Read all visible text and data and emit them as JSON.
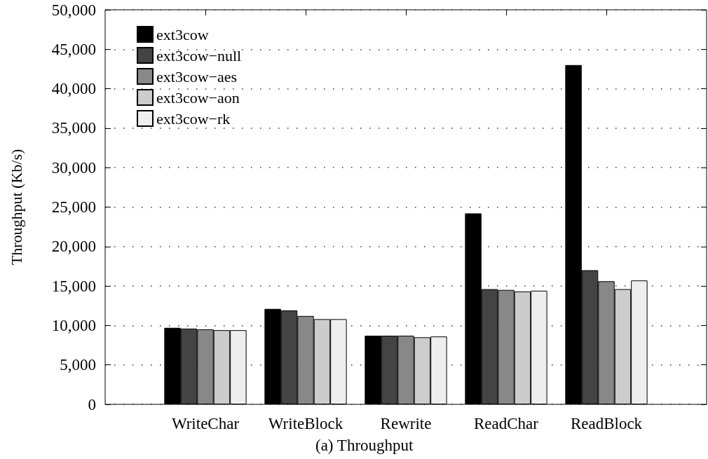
{
  "chart_data": {
    "type": "bar",
    "title": "(a) Throughput",
    "ylabel": "Throughput (Kb/s)",
    "categories": [
      "WriteChar",
      "WriteBlock",
      "Rewrite",
      "ReadChar",
      "ReadBlock"
    ],
    "series": [
      {
        "name": "ext3cow",
        "color": "#000000",
        "values": [
          9700,
          12100,
          8700,
          24200,
          43000
        ]
      },
      {
        "name": "ext3cow−null",
        "color": "#444444",
        "values": [
          9600,
          11900,
          8700,
          14600,
          17000
        ]
      },
      {
        "name": "ext3cow−aes",
        "color": "#888888",
        "values": [
          9500,
          11200,
          8700,
          14500,
          15600
        ]
      },
      {
        "name": "ext3cow−aon",
        "color": "#cccccc",
        "values": [
          9400,
          10800,
          8500,
          14300,
          14600
        ]
      },
      {
        "name": "ext3cow−rk",
        "color": "#eeeeee",
        "values": [
          9400,
          10800,
          8600,
          14400,
          15700
        ]
      }
    ],
    "ylim": [
      0,
      50000
    ],
    "yticks": [
      0,
      {
        "value": 5000,
        "label": "5,000"
      },
      {
        "value": 10000,
        "label": "10,000"
      },
      {
        "value": 15000,
        "label": "15,000"
      },
      {
        "value": 20000,
        "label": "20,000"
      },
      {
        "value": 25000,
        "label": "25,000"
      },
      {
        "value": 30000,
        "label": "30,000"
      },
      {
        "value": 35000,
        "label": "35,000"
      },
      {
        "value": 40000,
        "label": "40,000"
      },
      {
        "value": 45000,
        "label": "45,000"
      },
      {
        "value": 50000,
        "label": "50,000"
      }
    ],
    "grid": "y",
    "legend": "top left"
  }
}
